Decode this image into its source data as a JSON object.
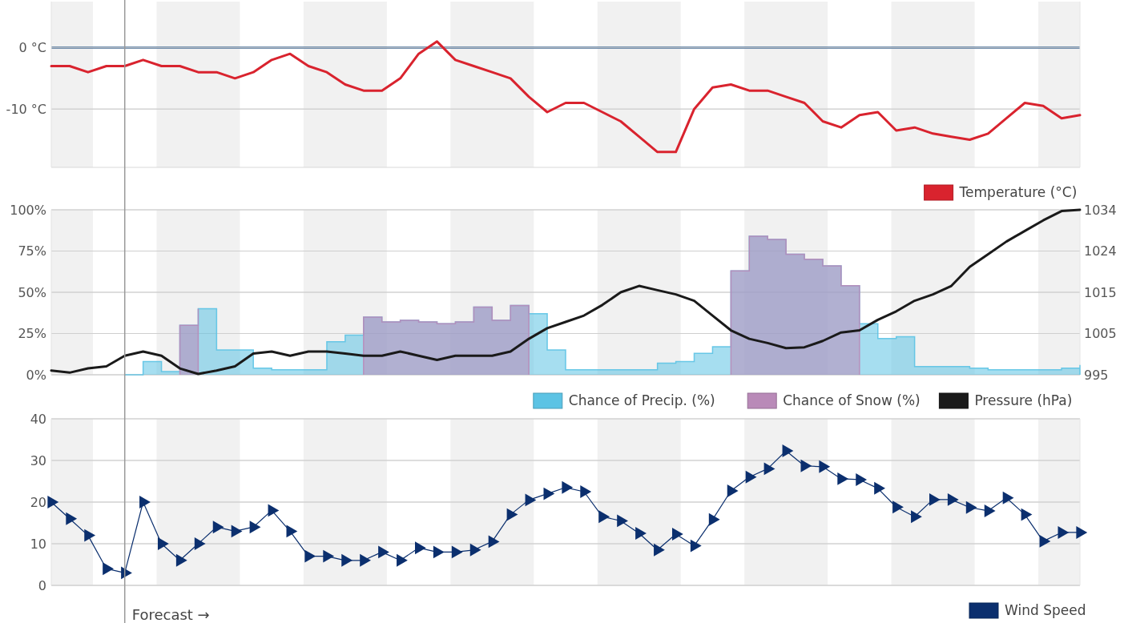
{
  "chart_data": [
    {
      "type": "line",
      "categories": [
        null,
        null,
        null,
        null,
        null,
        null,
        null,
        null,
        null,
        null,
        null,
        null,
        null,
        null,
        null,
        null,
        null,
        null,
        null,
        null,
        null,
        null,
        null,
        null,
        null,
        null,
        null,
        null,
        null,
        null,
        null,
        null,
        null,
        null,
        null,
        null,
        null,
        null,
        null,
        null,
        null,
        null,
        null,
        null,
        null,
        null,
        null,
        null,
        null,
        null,
        null,
        null,
        null,
        null,
        null,
        null,
        null
      ],
      "series": [
        {
          "name": "Temperature (°C)",
          "color": "#d9232e",
          "values": [
            -3,
            -3,
            -4,
            -3,
            -3,
            -2,
            -3,
            -3,
            -4,
            -4,
            -5,
            -4,
            -2,
            -1,
            -3,
            -4,
            -6,
            -7,
            -7,
            -5,
            -1,
            1,
            -2,
            -3,
            -4,
            -5,
            -8,
            -10.5,
            -9,
            -9,
            -10.5,
            -12,
            -14.5,
            -17,
            -17,
            -10,
            -6.5,
            -6,
            -7,
            -7,
            -8,
            -9,
            -12,
            -13,
            -11,
            -10.5,
            -13.5,
            -13,
            -14,
            -14.5,
            -15,
            -14,
            -11.5,
            -9,
            -9.5,
            -11.5,
            -11
          ]
        }
      ],
      "ylim": [
        -19.5,
        7.5
      ],
      "yticks": [
        {
          "value": 0,
          "label": "0 °C"
        },
        {
          "value": -10,
          "label": "-10 °C"
        }
      ],
      "ref_lines": [
        {
          "axis": "y",
          "value": 0,
          "color": "#4a6f96"
        }
      ],
      "grid": "y",
      "legend": "bottom right",
      "marker": "none"
    },
    {
      "type": "area",
      "categories": [
        null,
        null,
        null,
        null,
        null,
        null,
        null,
        null,
        null,
        null,
        null,
        null,
        null,
        null,
        null,
        null,
        null,
        null,
        null,
        null,
        null,
        null,
        null,
        null,
        null,
        null,
        null,
        null,
        null,
        null,
        null,
        null,
        null,
        null,
        null,
        null,
        null,
        null,
        null,
        null,
        null,
        null,
        null,
        null,
        null,
        null,
        null,
        null,
        null,
        null,
        null,
        null,
        null,
        null,
        null,
        null,
        null
      ],
      "series": [
        {
          "name": "Chance of Precip. (%)",
          "color": "#5cc3e4",
          "values": [
            null,
            null,
            null,
            null,
            0,
            8,
            2,
            30,
            40,
            15,
            15,
            4,
            3,
            3,
            3,
            20,
            24,
            35,
            32,
            33,
            32,
            31,
            32,
            41,
            33,
            42,
            37,
            15,
            3,
            3,
            3,
            3,
            3,
            7,
            8,
            13,
            17,
            63,
            84,
            82,
            73,
            70,
            66,
            54,
            31,
            22,
            23,
            5,
            5,
            5,
            4,
            3,
            3,
            3,
            3,
            4,
            6
          ]
        },
        {
          "name": "Chance of Snow (%)",
          "color": "#b98ab8",
          "values": [
            null,
            null,
            null,
            null,
            null,
            null,
            null,
            30,
            40,
            null,
            null,
            null,
            null,
            null,
            null,
            null,
            null,
            35,
            32,
            33,
            32,
            31,
            32,
            41,
            33,
            42,
            37,
            null,
            null,
            null,
            null,
            null,
            null,
            null,
            null,
            null,
            null,
            63,
            84,
            82,
            73,
            70,
            66,
            54,
            31,
            null,
            null,
            null,
            null,
            null,
            null,
            null,
            null,
            null,
            null,
            null,
            null
          ]
        },
        {
          "name": "Pressure (hPa)",
          "type": "line",
          "axis": "y2",
          "color": "#1a1a1a",
          "values": [
            996,
            995.5,
            996.5,
            997,
            999.5,
            1000.5,
            999.5,
            996.5,
            995.2,
            996,
            997,
            1000,
            1000.5,
            999.5,
            1000.5,
            1000.5,
            1000,
            999.5,
            999.5,
            1000.5,
            999.5,
            998.5,
            999.5,
            999.5,
            999.5,
            1000.5,
            1003.5,
            1006,
            1007.5,
            1009,
            1011.5,
            1014.5,
            1016,
            1015,
            1014,
            1012.5,
            1009,
            1005.5,
            1003.5,
            1002.5,
            1001.3,
            1001.5,
            1003,
            1005,
            1005.5,
            1008,
            1010,
            1012.5,
            1014,
            1016,
            1020.5,
            1023.5,
            1026.5,
            1029,
            1031.5,
            1033.7,
            1034
          ]
        }
      ],
      "ylim": [
        0,
        100
      ],
      "yticks": [
        {
          "value": 0,
          "label": "0%"
        },
        {
          "value": 25,
          "label": "25%"
        },
        {
          "value": 50,
          "label": "50%"
        },
        {
          "value": 75,
          "label": "75%"
        },
        {
          "value": 100,
          "label": "100%"
        }
      ],
      "y2lim": [
        995,
        1034
      ],
      "y2ticks": [
        995,
        {
          "value": 1004.75,
          "label": "1005"
        },
        {
          "value": 1014.5,
          "label": "1015"
        },
        {
          "value": 1024.25,
          "label": "1024"
        },
        1034
      ],
      "grid": "y",
      "legend": "bottom right",
      "marker": "none"
    },
    {
      "type": "line",
      "categories": [
        null,
        null,
        null,
        null,
        null,
        null,
        null,
        null,
        null,
        null,
        null,
        null,
        null,
        null,
        null,
        null,
        null,
        null,
        null,
        null,
        null,
        null,
        null,
        null,
        null,
        null,
        null,
        null,
        null,
        null,
        null,
        null,
        null,
        null,
        null,
        null,
        null,
        null,
        null,
        null,
        null,
        null,
        null,
        null,
        null,
        null,
        null,
        null,
        null,
        null,
        null,
        null,
        null,
        null,
        null,
        null,
        null
      ],
      "series": [
        {
          "name": "Wind Speed",
          "color": "#0b2f6e",
          "values": [
            20,
            16,
            12,
            4,
            3,
            20,
            10,
            6,
            10,
            14,
            13,
            14,
            18,
            13,
            7,
            7,
            6,
            6,
            8,
            6,
            9,
            8,
            8,
            8.5,
            10.5,
            17,
            20.5,
            22,
            23.5,
            22.5,
            16.5,
            15.5,
            12.5,
            8.5,
            12.3,
            9.5,
            15.8,
            22.7,
            26,
            28,
            32.3,
            28.7,
            28.5,
            25.6,
            25.4,
            23.3,
            18.8,
            16.5,
            20.6,
            20.6,
            18.7,
            17.9,
            21,
            17,
            10.6,
            12.7,
            12.7
          ]
        }
      ],
      "ylim": [
        0,
        40
      ],
      "yticks": [
        0,
        10,
        20,
        30,
        40
      ],
      "annotations": [
        "Forecast →"
      ],
      "grid": "y",
      "legend": "bottom right",
      "marker": "triangle"
    }
  ]
}
